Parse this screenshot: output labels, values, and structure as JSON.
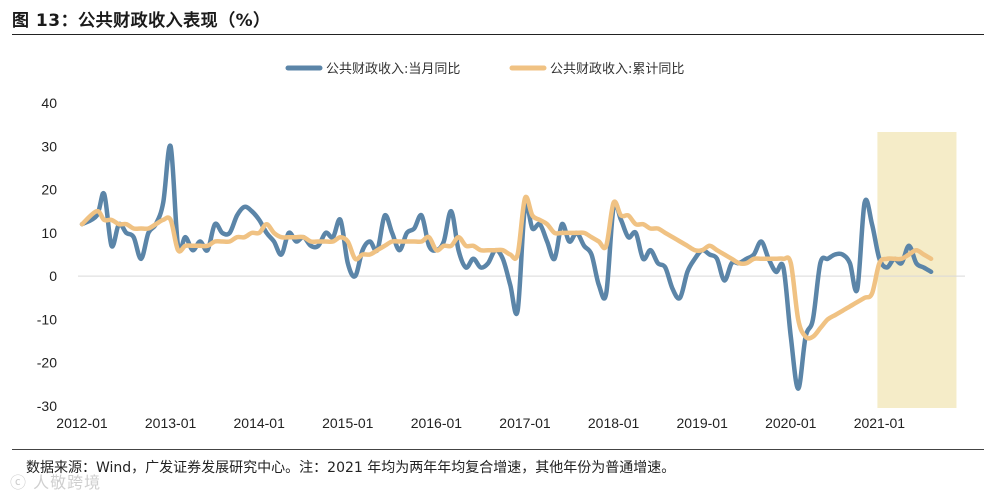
{
  "figure": {
    "title": "图 13：公共财政收入表现（%）",
    "source": "数据来源：Wind，广发证券发展研究中心。注：2021 年均为两年年均复合增速，其他年份为普通增速。",
    "watermark": "ⓒ 人敬跨境"
  },
  "chart_data": {
    "type": "line",
    "xlabel": "",
    "ylabel": "",
    "ylim": [
      -30,
      40
    ],
    "yticks": [
      -30,
      -20,
      -10,
      0,
      10,
      20,
      30,
      40
    ],
    "xticks": [
      "2012-01",
      "2013-01",
      "2014-01",
      "2015-01",
      "2016-01",
      "2017-01",
      "2018-01",
      "2019-01",
      "2020-01",
      "2021-01"
    ],
    "legend_position": "top-center",
    "grid": false,
    "shaded_region": {
      "from": "2021-01",
      "to": "2021-09",
      "color": "#f5ecc8"
    },
    "series": [
      {
        "name": "公共财政收入:当月同比",
        "color": "#5b85a8",
        "points": [
          [
            "2012-01",
            12
          ],
          [
            "2012-03",
            14
          ],
          [
            "2012-04",
            19
          ],
          [
            "2012-05",
            7
          ],
          [
            "2012-06",
            12
          ],
          [
            "2012-07",
            10
          ],
          [
            "2012-08",
            9
          ],
          [
            "2012-09",
            4
          ],
          [
            "2012-10",
            10
          ],
          [
            "2012-11",
            12
          ],
          [
            "2012-12",
            17
          ],
          [
            "2013-01",
            30
          ],
          [
            "2013-02",
            7
          ],
          [
            "2013-03",
            9
          ],
          [
            "2013-04",
            6
          ],
          [
            "2013-05",
            8
          ],
          [
            "2013-06",
            6
          ],
          [
            "2013-07",
            12
          ],
          [
            "2013-08",
            10
          ],
          [
            "2013-09",
            10
          ],
          [
            "2013-10",
            14
          ],
          [
            "2013-11",
            16
          ],
          [
            "2013-12",
            15
          ],
          [
            "2014-01",
            13
          ],
          [
            "2014-02",
            10
          ],
          [
            "2014-03",
            8
          ],
          [
            "2014-04",
            5
          ],
          [
            "2014-05",
            10
          ],
          [
            "2014-06",
            8
          ],
          [
            "2014-07",
            9
          ],
          [
            "2014-08",
            7
          ],
          [
            "2014-09",
            7
          ],
          [
            "2014-10",
            10
          ],
          [
            "2014-11",
            9
          ],
          [
            "2014-12",
            13
          ],
          [
            "2015-01",
            3
          ],
          [
            "2015-02",
            0
          ],
          [
            "2015-03",
            6
          ],
          [
            "2015-04",
            8
          ],
          [
            "2015-05",
            6
          ],
          [
            "2015-06",
            14
          ],
          [
            "2015-07",
            10
          ],
          [
            "2015-08",
            6
          ],
          [
            "2015-09",
            10
          ],
          [
            "2015-10",
            11
          ],
          [
            "2015-11",
            14
          ],
          [
            "2015-12",
            7
          ],
          [
            "2016-01",
            6
          ],
          [
            "2016-02",
            8
          ],
          [
            "2016-03",
            15
          ],
          [
            "2016-04",
            6
          ],
          [
            "2016-05",
            2
          ],
          [
            "2016-06",
            4
          ],
          [
            "2016-07",
            2
          ],
          [
            "2016-08",
            3
          ],
          [
            "2016-09",
            6
          ],
          [
            "2016-10",
            4
          ],
          [
            "2016-11",
            -2
          ],
          [
            "2016-12",
            -8
          ],
          [
            "2017-01",
            16
          ],
          [
            "2017-02",
            11
          ],
          [
            "2017-03",
            12
          ],
          [
            "2017-04",
            8
          ],
          [
            "2017-05",
            4
          ],
          [
            "2017-06",
            12
          ],
          [
            "2017-07",
            8
          ],
          [
            "2017-08",
            10
          ],
          [
            "2017-09",
            7
          ],
          [
            "2017-10",
            5
          ],
          [
            "2017-11",
            -2
          ],
          [
            "2017-12",
            -4
          ],
          [
            "2018-01",
            16
          ],
          [
            "2018-02",
            13
          ],
          [
            "2018-03",
            9
          ],
          [
            "2018-04",
            10
          ],
          [
            "2018-05",
            4
          ],
          [
            "2018-06",
            6
          ],
          [
            "2018-07",
            3
          ],
          [
            "2018-08",
            2
          ],
          [
            "2018-09",
            -3
          ],
          [
            "2018-10",
            -5
          ],
          [
            "2018-11",
            1
          ],
          [
            "2018-12",
            4
          ],
          [
            "2019-01",
            6
          ],
          [
            "2019-02",
            5
          ],
          [
            "2019-03",
            4
          ],
          [
            "2019-04",
            -1
          ],
          [
            "2019-05",
            3
          ],
          [
            "2019-06",
            3
          ],
          [
            "2019-07",
            4
          ],
          [
            "2019-08",
            5
          ],
          [
            "2019-09",
            8
          ],
          [
            "2019-10",
            4
          ],
          [
            "2019-11",
            1
          ],
          [
            "2019-12",
            2
          ],
          [
            "2020-01",
            -14
          ],
          [
            "2020-02",
            -26
          ],
          [
            "2020-03",
            -14
          ],
          [
            "2020-04",
            -10
          ],
          [
            "2020-05",
            3
          ],
          [
            "2020-06",
            4
          ],
          [
            "2020-07",
            5
          ],
          [
            "2020-08",
            5
          ],
          [
            "2020-09",
            3
          ],
          [
            "2020-10",
            -3
          ],
          [
            "2020-11",
            17
          ],
          [
            "2020-12",
            12
          ],
          [
            "2021-01",
            4
          ],
          [
            "2021-02",
            2
          ],
          [
            "2021-03",
            4
          ],
          [
            "2021-04",
            3
          ],
          [
            "2021-05",
            7
          ],
          [
            "2021-06",
            3
          ],
          [
            "2021-07",
            2
          ],
          [
            "2021-08",
            1
          ]
        ]
      },
      {
        "name": "公共财政收入:累计同比",
        "color": "#f0c283",
        "points": [
          [
            "2012-01",
            12
          ],
          [
            "2012-03",
            15
          ],
          [
            "2012-04",
            13
          ],
          [
            "2012-05",
            13
          ],
          [
            "2012-06",
            12
          ],
          [
            "2012-07",
            12
          ],
          [
            "2012-08",
            11
          ],
          [
            "2012-09",
            11
          ],
          [
            "2012-10",
            11
          ],
          [
            "2012-11",
            12
          ],
          [
            "2012-12",
            13
          ],
          [
            "2013-01",
            13
          ],
          [
            "2013-02",
            6
          ],
          [
            "2013-03",
            7
          ],
          [
            "2013-04",
            7
          ],
          [
            "2013-05",
            7
          ],
          [
            "2013-06",
            7
          ],
          [
            "2013-07",
            8
          ],
          [
            "2013-08",
            8
          ],
          [
            "2013-09",
            8
          ],
          [
            "2013-10",
            9
          ],
          [
            "2013-11",
            9
          ],
          [
            "2013-12",
            10
          ],
          [
            "2014-01",
            10
          ],
          [
            "2014-02",
            12
          ],
          [
            "2014-03",
            10
          ],
          [
            "2014-04",
            9
          ],
          [
            "2014-05",
            9
          ],
          [
            "2014-06",
            9
          ],
          [
            "2014-07",
            9
          ],
          [
            "2014-08",
            8
          ],
          [
            "2014-09",
            8
          ],
          [
            "2014-10",
            8
          ],
          [
            "2014-11",
            8
          ],
          [
            "2014-12",
            9
          ],
          [
            "2015-01",
            8
          ],
          [
            "2015-02",
            4
          ],
          [
            "2015-03",
            5
          ],
          [
            "2015-04",
            5
          ],
          [
            "2015-05",
            6
          ],
          [
            "2015-06",
            7
          ],
          [
            "2015-07",
            8
          ],
          [
            "2015-08",
            8
          ],
          [
            "2015-09",
            8
          ],
          [
            "2015-10",
            8
          ],
          [
            "2015-11",
            8
          ],
          [
            "2015-12",
            9
          ],
          [
            "2016-01",
            6
          ],
          [
            "2016-02",
            7
          ],
          [
            "2016-03",
            7
          ],
          [
            "2016-04",
            9
          ],
          [
            "2016-05",
            7
          ],
          [
            "2016-06",
            7
          ],
          [
            "2016-07",
            6
          ],
          [
            "2016-08",
            6
          ],
          [
            "2016-09",
            6
          ],
          [
            "2016-10",
            6
          ],
          [
            "2016-11",
            5
          ],
          [
            "2016-12",
            5
          ],
          [
            "2017-01",
            18
          ],
          [
            "2017-02",
            14
          ],
          [
            "2017-03",
            13
          ],
          [
            "2017-04",
            12
          ],
          [
            "2017-05",
            10
          ],
          [
            "2017-06",
            10
          ],
          [
            "2017-07",
            10
          ],
          [
            "2017-08",
            10
          ],
          [
            "2017-09",
            10
          ],
          [
            "2017-10",
            9
          ],
          [
            "2017-11",
            8
          ],
          [
            "2017-12",
            7
          ],
          [
            "2018-01",
            17
          ],
          [
            "2018-02",
            14
          ],
          [
            "2018-03",
            14
          ],
          [
            "2018-04",
            12
          ],
          [
            "2018-05",
            12
          ],
          [
            "2018-06",
            11
          ],
          [
            "2018-07",
            11
          ],
          [
            "2018-08",
            10
          ],
          [
            "2018-09",
            9
          ],
          [
            "2018-10",
            8
          ],
          [
            "2018-11",
            7
          ],
          [
            "2018-12",
            6
          ],
          [
            "2019-01",
            6
          ],
          [
            "2019-02",
            7
          ],
          [
            "2019-03",
            6
          ],
          [
            "2019-04",
            5
          ],
          [
            "2019-05",
            4
          ],
          [
            "2019-06",
            3
          ],
          [
            "2019-07",
            3
          ],
          [
            "2019-08",
            4
          ],
          [
            "2019-09",
            4
          ],
          [
            "2019-10",
            4
          ],
          [
            "2019-11",
            4
          ],
          [
            "2019-12",
            4
          ],
          [
            "2020-01",
            3
          ],
          [
            "2020-02",
            -10
          ],
          [
            "2020-03",
            -14
          ],
          [
            "2020-04",
            -14
          ],
          [
            "2020-05",
            -12
          ],
          [
            "2020-06",
            -10
          ],
          [
            "2020-07",
            -9
          ],
          [
            "2020-08",
            -8
          ],
          [
            "2020-09",
            -7
          ],
          [
            "2020-10",
            -6
          ],
          [
            "2020-11",
            -5
          ],
          [
            "2020-12",
            -4
          ],
          [
            "2021-01",
            3
          ],
          [
            "2021-02",
            4
          ],
          [
            "2021-03",
            4
          ],
          [
            "2021-04",
            4
          ],
          [
            "2021-05",
            5
          ],
          [
            "2021-06",
            6
          ],
          [
            "2021-07",
            5
          ],
          [
            "2021-08",
            4
          ]
        ]
      }
    ]
  }
}
